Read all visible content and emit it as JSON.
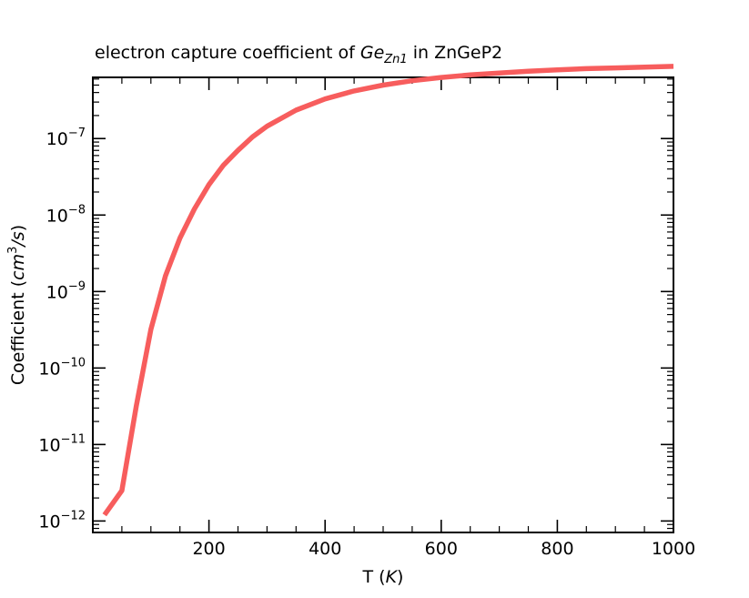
{
  "chart_data": {
    "type": "line",
    "title": {
      "prefix": "electron capture coefficient of ",
      "symbol": "Ge",
      "subscript": "Zn1",
      "suffix": " in ZnGeP2"
    },
    "xlabel": {
      "text": "T (",
      "italic": "K",
      "close": ")"
    },
    "ylabel": {
      "text": "Coefficient (",
      "italic_base": "cm",
      "sup": "3",
      "italic_tail": "/s",
      "close": ")"
    },
    "x_ticks": [
      200,
      400,
      600,
      800,
      1000
    ],
    "x_tick_labels": [
      "200",
      "400",
      "600",
      "800",
      "1000"
    ],
    "y_ticks": [
      1e-12,
      1e-11,
      1e-10,
      1e-09,
      1e-08,
      1e-07
    ],
    "y_tick_labels": [
      {
        "base": "10",
        "exp": "−12"
      },
      {
        "base": "10",
        "exp": "−11"
      },
      {
        "base": "10",
        "exp": "−10"
      },
      {
        "base": "10",
        "exp": "−9"
      },
      {
        "base": "10",
        "exp": "−8"
      },
      {
        "base": "10",
        "exp": "−7"
      }
    ],
    "xlim": [
      0,
      1000
    ],
    "y_log_range": [
      -12.15,
      -6.2
    ],
    "y_scale": "log",
    "grid": false,
    "series": [
      {
        "color": "#f75d5d",
        "x": [
          20,
          50,
          75,
          100,
          125,
          150,
          175,
          200,
          225,
          250,
          275,
          300,
          350,
          400,
          450,
          500,
          550,
          600,
          650,
          700,
          750,
          800,
          850,
          900,
          950,
          1000
        ],
        "y": [
          1.2e-12,
          2.5e-12,
          3.2e-11,
          3.2e-10,
          1.6e-09,
          5e-09,
          1.2e-08,
          2.5e-08,
          4.5e-08,
          7e-08,
          1.05e-07,
          1.45e-07,
          2.35e-07,
          3.3e-07,
          4.2e-07,
          5e-07,
          5.7e-07,
          6.3e-07,
          6.8e-07,
          7.2e-07,
          7.6e-07,
          7.9e-07,
          8.2e-07,
          8.4e-07,
          8.6e-07,
          8.8e-07
        ]
      }
    ]
  }
}
